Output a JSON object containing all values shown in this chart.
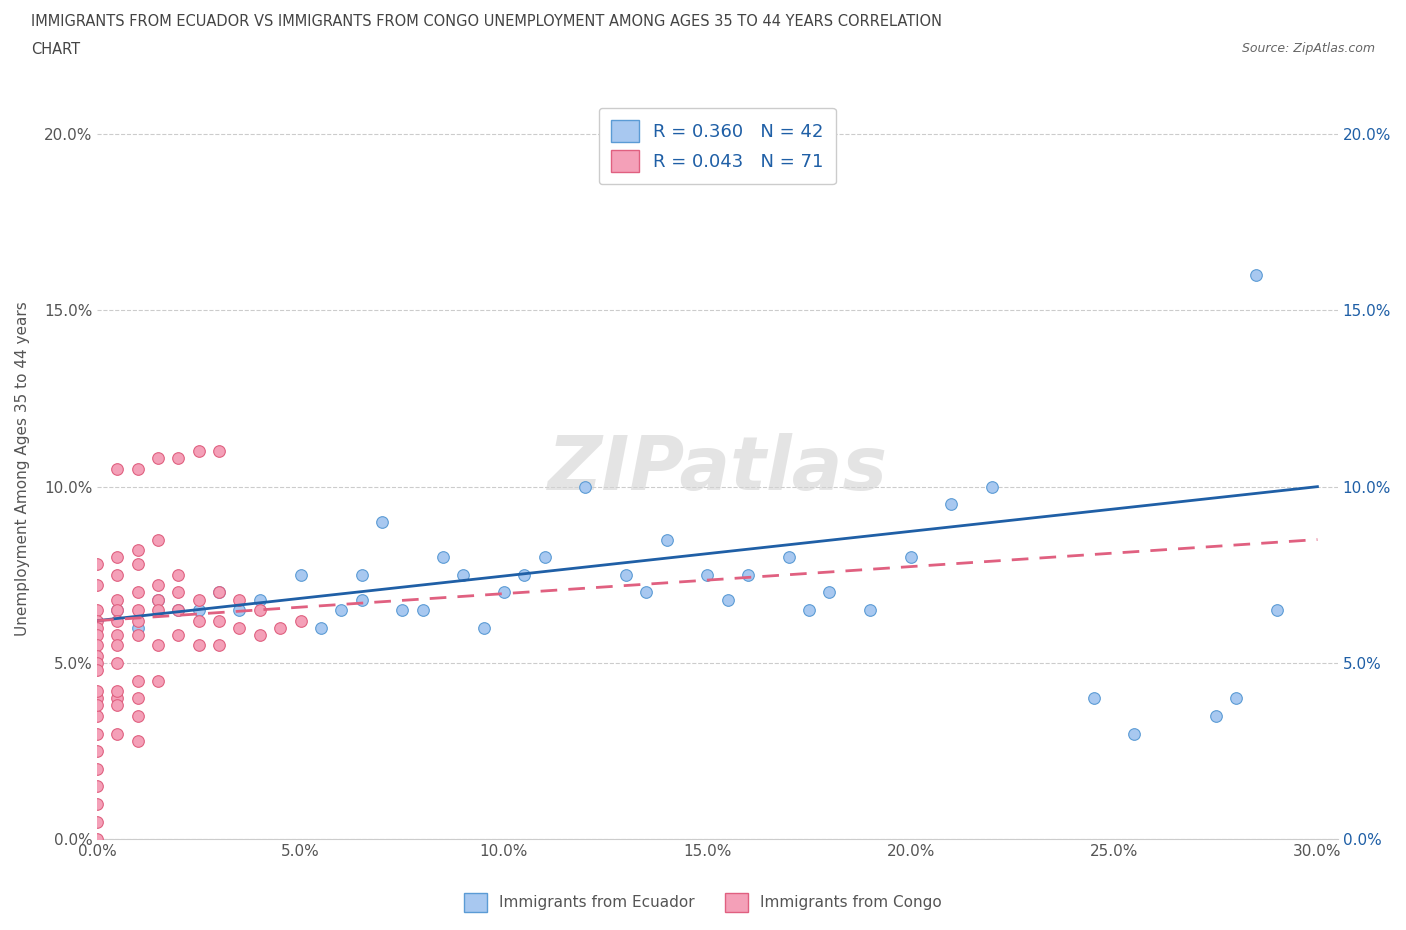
{
  "title_line1": "IMMIGRANTS FROM ECUADOR VS IMMIGRANTS FROM CONGO UNEMPLOYMENT AMONG AGES 35 TO 44 YEARS CORRELATION",
  "title_line2": "CHART",
  "source": "Source: ZipAtlas.com",
  "ylabel": "Unemployment Among Ages 35 to 44 years",
  "xlim": [
    0.0,
    0.305
  ],
  "ylim": [
    0.0,
    0.21
  ],
  "xticks": [
    0.0,
    0.05,
    0.1,
    0.15,
    0.2,
    0.25,
    0.3
  ],
  "xticklabels": [
    "0.0%",
    "5.0%",
    "10.0%",
    "15.0%",
    "20.0%",
    "25.0%",
    "30.0%"
  ],
  "yticks": [
    0.0,
    0.05,
    0.1,
    0.15,
    0.2
  ],
  "yticklabels": [
    "0.0%",
    "5.0%",
    "10.0%",
    "15.0%",
    "20.0%"
  ],
  "ecuador_color": "#A8C8F0",
  "ecuador_edge": "#5B9BD5",
  "congo_color": "#F4A0B8",
  "congo_edge": "#E06080",
  "trend_ecuador_color": "#1F5FA6",
  "trend_congo_color": "#E06080",
  "legend_R_ecuador": "R = 0.360   N = 42",
  "legend_R_congo": "R = 0.043   N = 71",
  "watermark": "ZIPatlas",
  "legend_label_ecuador": "Immigrants from Ecuador",
  "legend_label_congo": "Immigrants from Congo",
  "ecuador_x": [
    0.005,
    0.01,
    0.015,
    0.02,
    0.025,
    0.03,
    0.035,
    0.04,
    0.05,
    0.055,
    0.06,
    0.065,
    0.065,
    0.07,
    0.075,
    0.08,
    0.085,
    0.09,
    0.095,
    0.1,
    0.105,
    0.11,
    0.12,
    0.13,
    0.135,
    0.14,
    0.15,
    0.155,
    0.16,
    0.17,
    0.175,
    0.18,
    0.19,
    0.2,
    0.21,
    0.22,
    0.245,
    0.255,
    0.275,
    0.28,
    0.285,
    0.29
  ],
  "ecuador_y": [
    0.065,
    0.06,
    0.068,
    0.065,
    0.065,
    0.07,
    0.065,
    0.068,
    0.075,
    0.06,
    0.065,
    0.068,
    0.075,
    0.09,
    0.065,
    0.065,
    0.08,
    0.075,
    0.06,
    0.07,
    0.075,
    0.08,
    0.1,
    0.075,
    0.07,
    0.085,
    0.075,
    0.068,
    0.075,
    0.08,
    0.065,
    0.07,
    0.065,
    0.08,
    0.095,
    0.1,
    0.04,
    0.03,
    0.035,
    0.04,
    0.16,
    0.065
  ],
  "congo_x": [
    0.0,
    0.0,
    0.0,
    0.0,
    0.0,
    0.0,
    0.0,
    0.0,
    0.0,
    0.0,
    0.0,
    0.0,
    0.0,
    0.005,
    0.005,
    0.005,
    0.005,
    0.005,
    0.005,
    0.005,
    0.01,
    0.01,
    0.01,
    0.01,
    0.01,
    0.01,
    0.015,
    0.015,
    0.015,
    0.015,
    0.015,
    0.02,
    0.02,
    0.02,
    0.02,
    0.025,
    0.025,
    0.025,
    0.03,
    0.03,
    0.03,
    0.035,
    0.035,
    0.04,
    0.04,
    0.045,
    0.05,
    0.005,
    0.01,
    0.015,
    0.02,
    0.025,
    0.03,
    0.0,
    0.005,
    0.01,
    0.015,
    0.0,
    0.005,
    0.01,
    0.0,
    0.005,
    0.0,
    0.005,
    0.01,
    0.0,
    0.005,
    0.01,
    0.0,
    0.0,
    0.0
  ],
  "congo_y": [
    0.065,
    0.062,
    0.06,
    0.058,
    0.055,
    0.052,
    0.05,
    0.048,
    0.04,
    0.035,
    0.025,
    0.015,
    0.005,
    0.068,
    0.065,
    0.062,
    0.058,
    0.055,
    0.05,
    0.04,
    0.07,
    0.065,
    0.062,
    0.058,
    0.045,
    0.035,
    0.072,
    0.068,
    0.065,
    0.055,
    0.045,
    0.075,
    0.07,
    0.065,
    0.058,
    0.068,
    0.062,
    0.055,
    0.07,
    0.062,
    0.055,
    0.068,
    0.06,
    0.065,
    0.058,
    0.06,
    0.062,
    0.105,
    0.105,
    0.108,
    0.108,
    0.11,
    0.11,
    0.078,
    0.08,
    0.082,
    0.085,
    0.072,
    0.075,
    0.078,
    0.042,
    0.042,
    0.038,
    0.038,
    0.04,
    0.03,
    0.03,
    0.028,
    0.02,
    0.01,
    0.0
  ]
}
